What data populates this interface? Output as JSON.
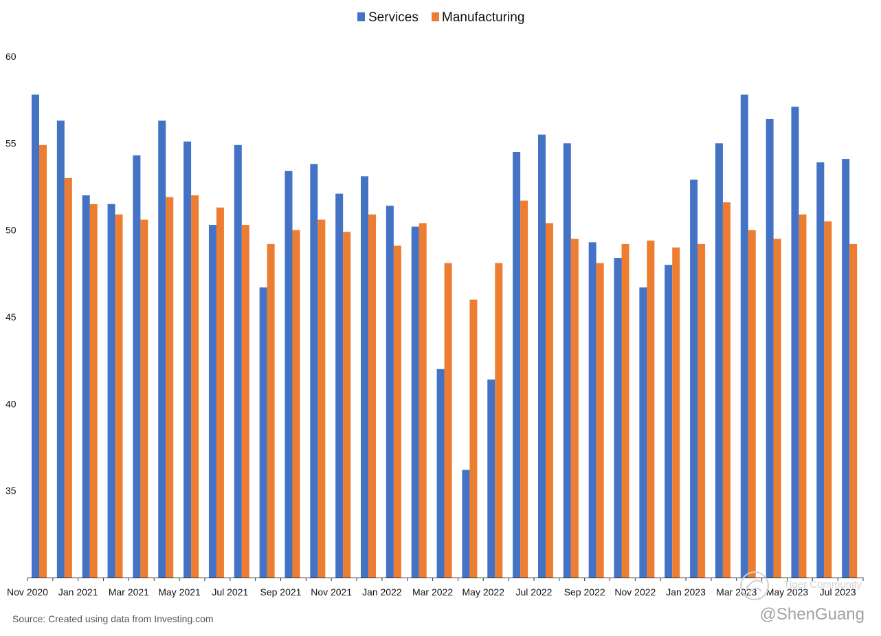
{
  "chart_data": {
    "type": "bar",
    "title": "",
    "xlabel": "",
    "ylabel": "",
    "ylim": [
      30,
      60
    ],
    "yticks": [
      35,
      40,
      45,
      50,
      55,
      60
    ],
    "grid": false,
    "legend_position": "top-center",
    "colors": {
      "Services": "#4472c4",
      "Manufacturing": "#ed7d31"
    },
    "categories": [
      "Nov 2020",
      "Dec 2020",
      "Jan 2021",
      "Feb 2021",
      "Mar 2021",
      "Apr 2021",
      "May 2021",
      "Jun 2021",
      "Jul 2021",
      "Aug 2021",
      "Sep 2021",
      "Oct 2021",
      "Nov 2021",
      "Dec 2021",
      "Jan 2022",
      "Feb 2022",
      "Mar 2022",
      "Apr 2022",
      "May 2022",
      "Jun 2022",
      "Jul 2022",
      "Aug 2022",
      "Sep 2022",
      "Oct 2022",
      "Nov 2022",
      "Dec 2022",
      "Jan 2023",
      "Feb 2023",
      "Mar 2023",
      "Apr 2023",
      "May 2023",
      "Jun 2023",
      "Jul 2023"
    ],
    "tick_labels": [
      "Nov 2020",
      "Jan 2021",
      "Mar 2021",
      "May 2021",
      "Jul 2021",
      "Sep 2021",
      "Nov 2021",
      "Jan 2022",
      "Mar 2022",
      "May 2022",
      "Jul 2022",
      "Sep 2022",
      "Nov 2022",
      "Jan 2023",
      "Mar 2023",
      "May 2023",
      "Jul 2023"
    ],
    "series": [
      {
        "name": "Services",
        "values": [
          57.8,
          56.3,
          52.0,
          51.5,
          54.3,
          56.3,
          55.1,
          50.3,
          54.9,
          46.7,
          53.4,
          53.8,
          52.1,
          53.1,
          51.4,
          50.2,
          42.0,
          36.2,
          41.4,
          54.5,
          55.5,
          55.0,
          49.3,
          48.4,
          46.7,
          48.0,
          52.9,
          55.0,
          57.8,
          56.4,
          57.1,
          53.9,
          54.1
        ]
      },
      {
        "name": "Manufacturing",
        "values": [
          54.9,
          53.0,
          51.5,
          50.9,
          50.6,
          51.9,
          52.0,
          51.3,
          50.3,
          49.2,
          50.0,
          50.6,
          49.9,
          50.9,
          49.1,
          50.4,
          48.1,
          46.0,
          48.1,
          51.7,
          50.4,
          49.5,
          48.1,
          49.2,
          49.4,
          49.0,
          49.2,
          51.6,
          50.0,
          49.5,
          50.9,
          50.5,
          49.2
        ]
      }
    ]
  },
  "footer": {
    "source": "Source: Created using data from Investing.com",
    "watermark_name": "@ShenGuang",
    "watermark_community": "Tiger Community"
  }
}
